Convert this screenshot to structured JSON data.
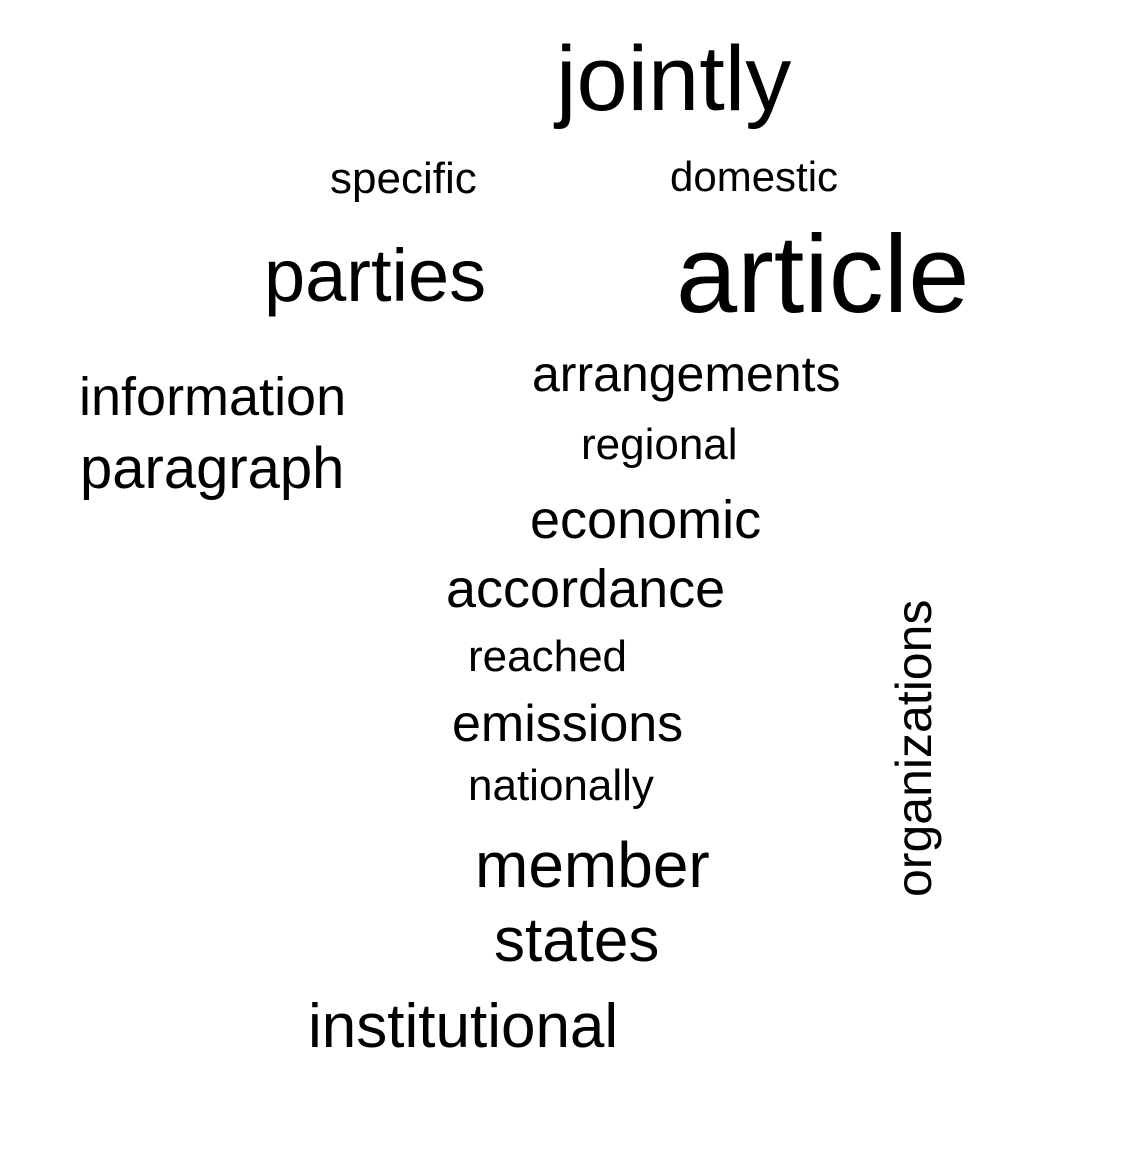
{
  "word_cloud": {
    "text_color": "#000000",
    "background_color": "#ffffff",
    "words": [
      {
        "id": "jointly",
        "text": "jointly",
        "orientation": "horizontal"
      },
      {
        "id": "specific",
        "text": "specific",
        "orientation": "horizontal"
      },
      {
        "id": "domestic",
        "text": "domestic",
        "orientation": "horizontal"
      },
      {
        "id": "parties",
        "text": "parties",
        "orientation": "horizontal"
      },
      {
        "id": "article",
        "text": "article",
        "orientation": "horizontal"
      },
      {
        "id": "arrangements",
        "text": "arrangements",
        "orientation": "horizontal"
      },
      {
        "id": "information",
        "text": "information",
        "orientation": "horizontal"
      },
      {
        "id": "regional",
        "text": "regional",
        "orientation": "horizontal"
      },
      {
        "id": "paragraph",
        "text": "paragraph",
        "orientation": "horizontal"
      },
      {
        "id": "economic",
        "text": "economic",
        "orientation": "horizontal"
      },
      {
        "id": "accordance",
        "text": "accordance",
        "orientation": "horizontal"
      },
      {
        "id": "organizations",
        "text": "organizations",
        "orientation": "vertical"
      },
      {
        "id": "reached",
        "text": "reached",
        "orientation": "horizontal"
      },
      {
        "id": "emissions",
        "text": "emissions",
        "orientation": "horizontal"
      },
      {
        "id": "nationally",
        "text": "nationally",
        "orientation": "horizontal"
      },
      {
        "id": "member",
        "text": "member",
        "orientation": "horizontal"
      },
      {
        "id": "states",
        "text": "states",
        "orientation": "horizontal"
      },
      {
        "id": "institutional",
        "text": "institutional",
        "orientation": "horizontal"
      }
    ]
  }
}
